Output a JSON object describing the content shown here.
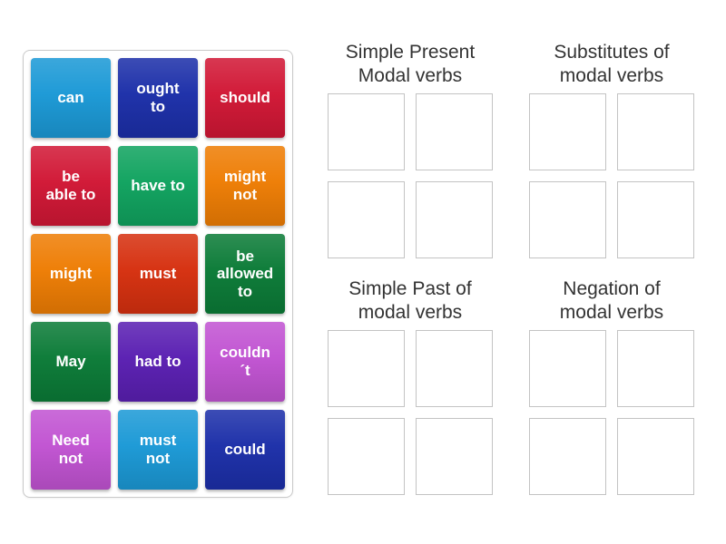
{
  "page": {
    "background_color": "#ffffff",
    "title_text_color": "#333333"
  },
  "source_panel": {
    "border_color": "#c9c9c9",
    "tiles": [
      {
        "label": "can",
        "color": "#1b99d6"
      },
      {
        "label": "ought\nto",
        "color": "#1c2fa9"
      },
      {
        "label": "should",
        "color": "#d11735"
      },
      {
        "label": "be\nable to",
        "color": "#d11735"
      },
      {
        "label": "have to",
        "color": "#10a35f"
      },
      {
        "label": "might\nnot",
        "color": "#ee7d04"
      },
      {
        "label": "might",
        "color": "#ee7d04"
      },
      {
        "label": "must",
        "color": "#d6300f"
      },
      {
        "label": "be\nallowed\nto",
        "color": "#0b7b37"
      },
      {
        "label": "May",
        "color": "#0b7b37"
      },
      {
        "label": "had to",
        "color": "#5a1fb2"
      },
      {
        "label": "couldn\n´t",
        "color": "#c153d2"
      },
      {
        "label": "Need\nnot",
        "color": "#c153d2"
      },
      {
        "label": "must\nnot",
        "color": "#1b99d6"
      },
      {
        "label": "could",
        "color": "#1c2fa9"
      }
    ]
  },
  "groups": [
    {
      "title": "Simple Present\nModal verbs",
      "slots": 4
    },
    {
      "title": "Substitutes of\nmodal verbs",
      "slots": 4
    },
    {
      "title": "Simple Past of\nmodal verbs",
      "slots": 4
    },
    {
      "title": "Negation of\nmodal verbs",
      "slots": 4
    }
  ]
}
